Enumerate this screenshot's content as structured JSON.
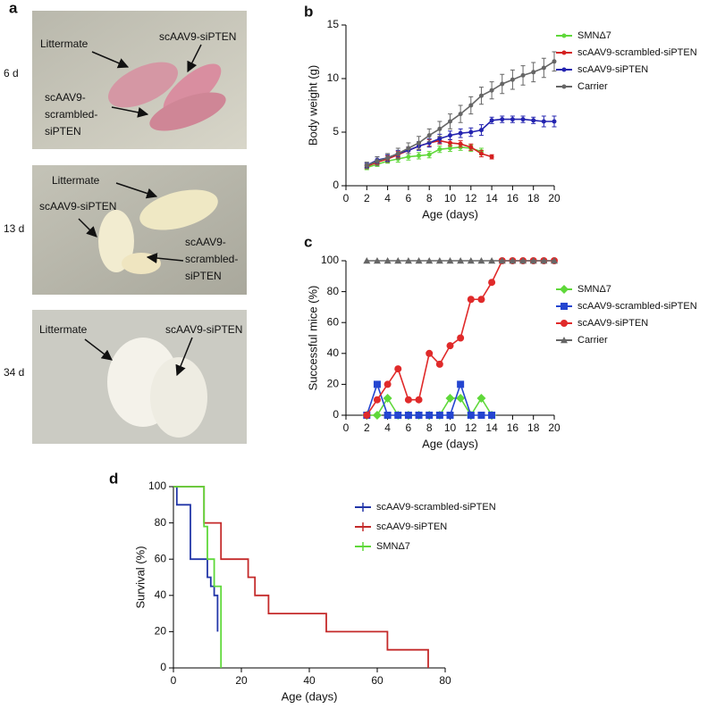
{
  "photo_panel": {
    "panel_label": "a",
    "photos": [
      {
        "day": "6 d",
        "labels": [
          [
            "Littermate"
          ],
          [
            "scAAV9-siPTEN"
          ],
          [
            "scAAV9-",
            "scrambled-",
            "siPTEN"
          ]
        ]
      },
      {
        "day": "13 d",
        "labels": [
          [
            "Littermate"
          ],
          [
            "scAAV9-siPTEN"
          ],
          [
            "scAAV9-",
            "scrambled-",
            "siPTEN"
          ]
        ]
      },
      {
        "day": "34 d",
        "labels": [
          [
            "Littermate"
          ],
          [
            "scAAV9-siPTEN"
          ]
        ]
      }
    ]
  },
  "chart_data": [
    {
      "type": "line",
      "panel_label": "b",
      "x_label": "Age (days)",
      "y_label": "Body weight (g)",
      "xlim": [
        0,
        20
      ],
      "xticks": [
        0,
        2,
        4,
        6,
        8,
        10,
        12,
        14,
        16,
        18,
        20
      ],
      "ylim": [
        0,
        15
      ],
      "yticks": [
        0,
        5,
        10,
        15
      ],
      "x": [
        2,
        3,
        4,
        5,
        6,
        7,
        8,
        9,
        10,
        11,
        12,
        13,
        14,
        15,
        16,
        17,
        18,
        19,
        20
      ],
      "series": [
        {
          "name": "SMNΔ7",
          "color": "#5fd83a",
          "marker": "circle",
          "values": [
            1.7,
            2.0,
            2.3,
            2.5,
            2.7,
            2.8,
            2.9,
            3.4,
            3.5,
            3.6,
            3.5,
            3.2,
            null,
            null,
            null,
            null,
            null,
            null,
            null
          ],
          "errors": [
            0.2,
            0.2,
            0.2,
            0.3,
            0.3,
            0.3,
            0.3,
            0.3,
            0.3,
            0.3,
            0.3,
            0.3,
            null,
            null,
            null,
            null,
            null,
            null,
            null
          ]
        },
        {
          "name": "scAAV9-scrambled-siPTEN",
          "color": "#d42020",
          "marker": "circle",
          "values": [
            1.8,
            2.2,
            2.5,
            2.9,
            3.3,
            3.7,
            4.0,
            4.2,
            4.0,
            3.9,
            3.6,
            3.0,
            2.7,
            null,
            null,
            null,
            null,
            null,
            null
          ],
          "errors": [
            0.2,
            0.2,
            0.3,
            0.3,
            0.3,
            0.3,
            0.3,
            0.3,
            0.3,
            0.3,
            0.3,
            0.3,
            0.2,
            null,
            null,
            null,
            null,
            null,
            null
          ]
        },
        {
          "name": "scAAV9-siPTEN",
          "color": "#2424b0",
          "marker": "circle",
          "values": [
            1.9,
            2.4,
            2.6,
            3.0,
            3.3,
            3.7,
            4.0,
            4.4,
            4.7,
            4.9,
            5.0,
            5.2,
            6.1,
            6.2,
            6.2,
            6.2,
            6.1,
            6.0,
            6.0
          ],
          "errors": [
            0.2,
            0.3,
            0.3,
            0.3,
            0.3,
            0.4,
            0.4,
            0.4,
            0.4,
            0.4,
            0.4,
            0.5,
            0.3,
            0.3,
            0.3,
            0.3,
            0.3,
            0.5,
            0.5
          ]
        },
        {
          "name": "Carrier",
          "color": "#666666",
          "marker": "circle",
          "values": [
            1.9,
            2.3,
            2.6,
            3.0,
            3.5,
            4.0,
            4.7,
            5.3,
            6.0,
            6.7,
            7.5,
            8.4,
            8.9,
            9.5,
            9.9,
            10.3,
            10.6,
            11.0,
            11.6
          ],
          "errors": [
            0.3,
            0.4,
            0.4,
            0.5,
            0.5,
            0.6,
            0.6,
            0.7,
            0.7,
            0.8,
            0.8,
            0.8,
            0.8,
            0.9,
            0.9,
            0.9,
            0.9,
            0.9,
            0.9
          ]
        }
      ]
    },
    {
      "type": "line",
      "panel_label": "c",
      "x_label": "Age (days)",
      "y_label": "Successful mice (%)",
      "xlim": [
        0,
        20
      ],
      "xticks": [
        0,
        2,
        4,
        6,
        8,
        10,
        12,
        14,
        16,
        18,
        20
      ],
      "ylim": [
        0,
        100
      ],
      "yticks": [
        0,
        20,
        40,
        60,
        80,
        100
      ],
      "x": [
        2,
        3,
        4,
        5,
        6,
        7,
        8,
        9,
        10,
        11,
        12,
        13,
        14,
        15,
        16,
        17,
        18,
        19,
        20
      ],
      "series": [
        {
          "name": "SMNΔ7",
          "color": "#5fd83a",
          "marker": "diamond",
          "values": [
            0,
            0,
            11,
            0,
            0,
            0,
            0,
            0,
            11,
            11,
            0,
            11,
            0,
            null,
            null,
            null,
            null,
            null,
            null
          ]
        },
        {
          "name": "scAAV9-scrambled-siPTEN",
          "color": "#2445d0",
          "marker": "square",
          "values": [
            0,
            20,
            0,
            0,
            0,
            0,
            0,
            0,
            0,
            20,
            0,
            0,
            0,
            null,
            null,
            null,
            null,
            null,
            null
          ]
        },
        {
          "name": "scAAV9-siPTEN",
          "color": "#e02a2a",
          "marker": "circle",
          "values": [
            0,
            10,
            20,
            30,
            10,
            10,
            40,
            33,
            45,
            50,
            75,
            75,
            86,
            100,
            100,
            100,
            100,
            100,
            100
          ]
        },
        {
          "name": "Carrier",
          "color": "#666666",
          "marker": "triangle",
          "values": [
            100,
            100,
            100,
            100,
            100,
            100,
            100,
            100,
            100,
            100,
            100,
            100,
            100,
            100,
            100,
            100,
            100,
            100,
            100
          ]
        }
      ]
    },
    {
      "type": "step",
      "panel_label": "d",
      "x_label": "Age (days)",
      "y_label": "Survival (%)",
      "xlim": [
        0,
        80
      ],
      "xticks": [
        0,
        20,
        40,
        60,
        80
      ],
      "ylim": [
        0,
        100
      ],
      "yticks": [
        0,
        20,
        40,
        60,
        80,
        100
      ],
      "series": [
        {
          "name": "scAAV9-scrambled-siPTEN",
          "color": "#2236a8",
          "x": [
            0,
            1,
            5,
            10,
            11,
            12,
            13
          ],
          "values": [
            100,
            90,
            60,
            50,
            45,
            40,
            20
          ]
        },
        {
          "name": "scAAV9-siPTEN",
          "color": "#c42a2a",
          "x": [
            0,
            9,
            14,
            22,
            24,
            28,
            45,
            63,
            75
          ],
          "values": [
            100,
            80,
            60,
            50,
            40,
            30,
            20,
            10,
            0
          ]
        },
        {
          "name": "SMNΔ7",
          "color": "#5fd83a",
          "x": [
            0,
            9,
            10,
            12,
            14
          ],
          "values": [
            100,
            78,
            60,
            45,
            0
          ]
        }
      ]
    }
  ]
}
